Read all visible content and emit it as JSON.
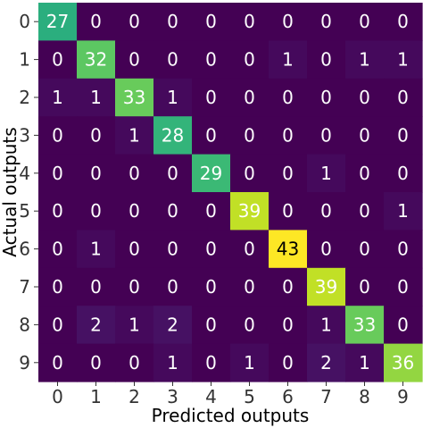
{
  "chart_data": {
    "type": "heatmap",
    "title": "",
    "xlabel": "Predicted outputs",
    "ylabel": "Actual outputs",
    "x_categories": [
      "0",
      "1",
      "2",
      "3",
      "4",
      "5",
      "6",
      "7",
      "8",
      "9"
    ],
    "y_categories": [
      "0",
      "1",
      "2",
      "3",
      "4",
      "5",
      "6",
      "7",
      "8",
      "9"
    ],
    "values": [
      [
        27,
        0,
        0,
        0,
        0,
        0,
        0,
        0,
        0,
        0
      ],
      [
        0,
        32,
        0,
        0,
        0,
        0,
        1,
        0,
        1,
        1
      ],
      [
        1,
        1,
        33,
        1,
        0,
        0,
        0,
        0,
        0,
        0
      ],
      [
        0,
        0,
        1,
        28,
        0,
        0,
        0,
        0,
        0,
        0
      ],
      [
        0,
        0,
        0,
        0,
        29,
        0,
        0,
        1,
        0,
        0
      ],
      [
        0,
        0,
        0,
        0,
        0,
        39,
        0,
        0,
        0,
        1
      ],
      [
        0,
        1,
        0,
        0,
        0,
        0,
        43,
        0,
        0,
        0
      ],
      [
        0,
        0,
        0,
        0,
        0,
        0,
        0,
        39,
        0,
        0
      ],
      [
        0,
        2,
        1,
        2,
        0,
        0,
        0,
        1,
        33,
        0
      ],
      [
        0,
        0,
        0,
        1,
        0,
        1,
        0,
        2,
        1,
        36
      ]
    ],
    "vmin": 0,
    "vmax": 43,
    "colormap": "viridis",
    "grid": false,
    "legend": "none"
  }
}
